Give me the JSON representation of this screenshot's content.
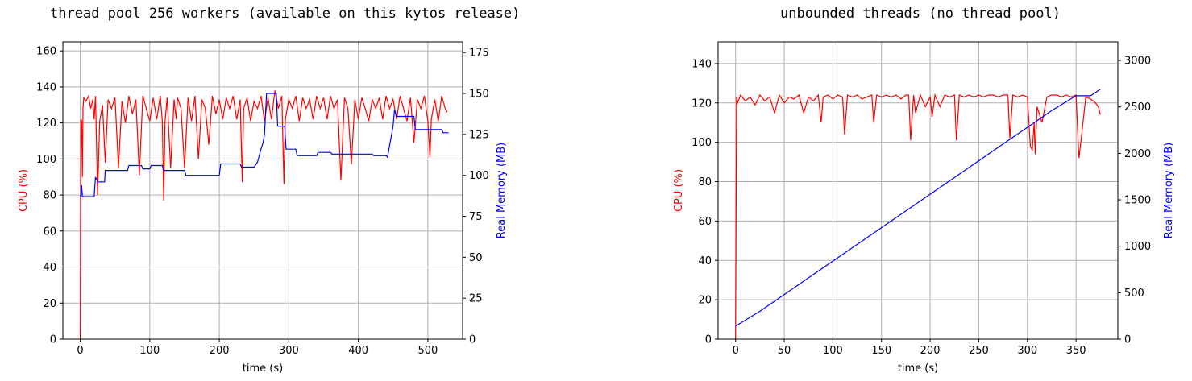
{
  "colors": {
    "cpu": "#ff0000",
    "memory": "#0000ff",
    "grid": "#b0b0b0",
    "axis": "#000000"
  },
  "chart_data": [
    {
      "type": "line",
      "title": "thread pool 256 workers (available on this kytos release)",
      "xlabel": "time (s)",
      "ylabel": "CPU (%)",
      "ylabel_right": "Real Memory (MB)",
      "xlim": [
        -25,
        550
      ],
      "ylim": [
        0,
        165
      ],
      "ylim_right": [
        0,
        181.5
      ],
      "x_ticks": [
        0,
        100,
        200,
        300,
        400,
        500
      ],
      "y_ticks": [
        0,
        20,
        40,
        60,
        80,
        100,
        120,
        140,
        160
      ],
      "y_ticks_right": [
        0,
        25,
        50,
        75,
        100,
        125,
        150,
        175
      ],
      "grid": true,
      "series": [
        {
          "name": "CPU (%)",
          "axis": "left",
          "x": [
            0,
            1,
            2,
            3,
            4,
            5,
            8,
            12,
            15,
            18,
            20,
            22,
            25,
            28,
            32,
            36,
            40,
            45,
            50,
            55,
            60,
            65,
            70,
            75,
            80,
            85,
            90,
            95,
            100,
            105,
            110,
            115,
            118,
            120,
            122,
            125,
            130,
            135,
            138,
            140,
            145,
            150,
            155,
            160,
            165,
            170,
            175,
            180,
            185,
            190,
            195,
            200,
            205,
            210,
            215,
            220,
            225,
            230,
            233,
            235,
            240,
            245,
            250,
            255,
            260,
            265,
            270,
            275,
            280,
            285,
            290,
            293,
            295,
            300,
            305,
            310,
            315,
            320,
            325,
            330,
            335,
            340,
            345,
            350,
            355,
            360,
            365,
            370,
            375,
            380,
            385,
            390,
            395,
            400,
            405,
            410,
            415,
            420,
            425,
            430,
            435,
            440,
            445,
            450,
            455,
            460,
            465,
            470,
            475,
            480,
            485,
            490,
            495,
            500,
            503,
            505,
            510,
            515,
            520,
            525,
            528
          ],
          "values": [
            0,
            122,
            121,
            90,
            128,
            134,
            132,
            135,
            128,
            133,
            122,
            135,
            80,
            121,
            130,
            98,
            133,
            128,
            134,
            95,
            132,
            120,
            135,
            125,
            133,
            91,
            135,
            128,
            121,
            134,
            122,
            135,
            121,
            77,
            121,
            134,
            95,
            133,
            122,
            134,
            128,
            95,
            134,
            121,
            135,
            100,
            133,
            128,
            108,
            135,
            125,
            133,
            122,
            134,
            128,
            135,
            122,
            133,
            87,
            128,
            134,
            121,
            132,
            128,
            135,
            121,
            134,
            122,
            138,
            128,
            135,
            86,
            122,
            133,
            128,
            135,
            121,
            134,
            128,
            133,
            122,
            135,
            128,
            134,
            122,
            135,
            128,
            133,
            88,
            134,
            128,
            97,
            133,
            122,
            134,
            128,
            121,
            133,
            128,
            134,
            122,
            135,
            128,
            133,
            122,
            135,
            128,
            121,
            134,
            109,
            133,
            128,
            135,
            121,
            101,
            122,
            133,
            121,
            135,
            128,
            126
          ]
        },
        {
          "name": "Real Memory (MB)",
          "axis": "right",
          "x": [
            0,
            1,
            2,
            3,
            5,
            20,
            22,
            25,
            35,
            36,
            58,
            60,
            68,
            70,
            88,
            90,
            100,
            102,
            118,
            120,
            150,
            152,
            180,
            182,
            200,
            202,
            230,
            232,
            250,
            255,
            260,
            263,
            265,
            268,
            272,
            282,
            284,
            294,
            296,
            310,
            312,
            340,
            342,
            360,
            362,
            420,
            422,
            440,
            442,
            450,
            452,
            455,
            480,
            482,
            500,
            502,
            520,
            522,
            530
          ],
          "values": [
            88,
            87,
            94,
            87,
            87,
            87,
            99,
            96,
            96,
            103,
            103,
            103,
            103,
            106,
            106,
            104,
            104,
            106,
            106,
            103,
            103,
            100,
            100,
            100,
            100,
            107,
            107,
            105,
            105,
            108,
            116,
            120,
            125,
            150,
            150,
            150,
            130,
            130,
            116,
            116,
            112,
            112,
            114,
            114,
            113,
            113,
            112,
            112,
            111,
            130,
            140,
            136,
            136,
            128,
            128,
            128,
            128,
            126,
            126
          ]
        }
      ]
    },
    {
      "type": "line",
      "title": "unbounded threads (no thread pool)",
      "xlabel": "time (s)",
      "ylabel": "CPU (%)",
      "ylabel_right": "Real Memory (MB)",
      "xlim": [
        -18,
        393
      ],
      "ylim": [
        0,
        151
      ],
      "ylim_right": [
        0,
        3200
      ],
      "x_ticks": [
        0,
        50,
        100,
        150,
        200,
        250,
        300,
        350
      ],
      "y_ticks": [
        0,
        20,
        40,
        60,
        80,
        100,
        120,
        140
      ],
      "y_ticks_right": [
        0,
        500,
        1000,
        1500,
        2000,
        2500,
        3000
      ],
      "grid": true,
      "series": [
        {
          "name": "CPU (%)",
          "axis": "left",
          "x": [
            0,
            1,
            2,
            5,
            10,
            15,
            20,
            25,
            30,
            35,
            40,
            45,
            50,
            55,
            60,
            65,
            70,
            75,
            80,
            85,
            88,
            90,
            95,
            100,
            105,
            110,
            112,
            115,
            120,
            125,
            130,
            135,
            140,
            142,
            145,
            150,
            155,
            160,
            165,
            170,
            175,
            178,
            180,
            183,
            185,
            190,
            195,
            200,
            202,
            205,
            210,
            215,
            220,
            225,
            227,
            230,
            235,
            240,
            245,
            250,
            255,
            260,
            265,
            270,
            275,
            280,
            282,
            285,
            290,
            295,
            300,
            303,
            305,
            307,
            308,
            310,
            315,
            320,
            325,
            330,
            335,
            340,
            345,
            350,
            353,
            355,
            360,
            365,
            370,
            373,
            375
          ],
          "values": [
            0,
            123,
            120,
            124,
            121,
            123,
            119,
            124,
            121,
            123,
            115,
            124,
            120,
            123,
            122,
            124,
            115,
            123,
            121,
            124,
            110,
            123,
            124,
            122,
            124,
            123,
            104,
            124,
            123,
            124,
            122,
            123,
            124,
            110,
            124,
            123,
            124,
            123,
            124,
            122,
            124,
            124,
            101,
            124,
            115,
            124,
            118,
            123,
            113,
            124,
            118,
            124,
            123,
            124,
            101,
            124,
            123,
            124,
            123,
            124,
            123,
            124,
            124,
            123,
            124,
            124,
            102,
            124,
            123,
            124,
            123,
            98,
            96,
            110,
            94,
            118,
            110,
            123,
            124,
            124,
            123,
            124,
            123,
            124,
            92,
            100,
            123,
            122,
            120,
            118,
            114
          ]
        },
        {
          "name": "Real Memory (MB)",
          "axis": "right",
          "x": [
            0,
            25,
            50,
            75,
            100,
            125,
            150,
            175,
            200,
            225,
            250,
            275,
            300,
            325,
            350,
            365,
            375
          ],
          "values": [
            140,
            300,
            480,
            660,
            840,
            1020,
            1200,
            1380,
            1560,
            1740,
            1920,
            2100,
            2280,
            2460,
            2620,
            2620,
            2690
          ]
        }
      ]
    }
  ]
}
